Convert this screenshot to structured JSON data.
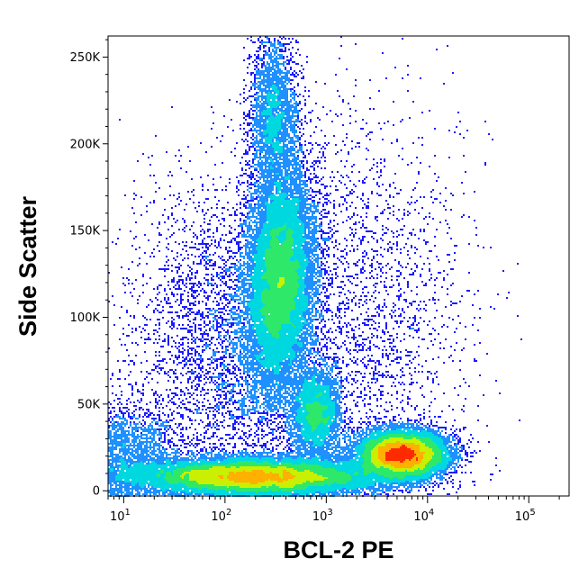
{
  "chart_data": {
    "type": "scatter",
    "style": "density-colored flow cytometry dot plot",
    "title": "",
    "xlabel": "BCL-2 PE",
    "ylabel": "Side Scatter",
    "x_scale": "log",
    "xlim": [
      7,
      250000
    ],
    "ylim": [
      -3000,
      262144
    ],
    "x_ticks": [
      {
        "value": 10,
        "base": "10",
        "exp": "1"
      },
      {
        "value": 100,
        "base": "10",
        "exp": "2"
      },
      {
        "value": 1000,
        "base": "10",
        "exp": "3"
      },
      {
        "value": 10000,
        "base": "10",
        "exp": "4"
      },
      {
        "value": 100000,
        "base": "10",
        "exp": "5"
      }
    ],
    "y_ticks": [
      {
        "value": 0,
        "label": "0"
      },
      {
        "value": 50000,
        "label": "50K"
      },
      {
        "value": 100000,
        "label": "100K"
      },
      {
        "value": 150000,
        "label": "150K"
      },
      {
        "value": 200000,
        "label": "200K"
      },
      {
        "value": 250000,
        "label": "250K"
      }
    ],
    "grid": false,
    "legend": "none",
    "colormap": [
      "#1a1aff",
      "#1e90ff",
      "#00d8e0",
      "#2ee86a",
      "#c8f000",
      "#ffb000",
      "#ff2a00"
    ],
    "populations": [
      {
        "x_center": 350,
        "x_log_sd": 0.17,
        "y_center": 120000,
        "y_sd": 32000,
        "weight": 0.25,
        "tilt": 0.25
      },
      {
        "x_center": 300,
        "x_log_sd": 0.12,
        "y_center": 215000,
        "y_sd": 25000,
        "weight": 0.05,
        "tilt": 0.0
      },
      {
        "x_center": 200,
        "x_log_sd": 0.6,
        "y_center": 8000,
        "y_sd": 5500,
        "weight": 0.3,
        "tilt": 0.0
      },
      {
        "x_center": 5500,
        "x_log_sd": 0.22,
        "y_center": 21000,
        "y_sd": 7000,
        "weight": 0.2,
        "tilt": 0.0
      },
      {
        "x_center": 800,
        "x_log_sd": 0.12,
        "y_center": 45000,
        "y_sd": 13000,
        "weight": 0.06,
        "tilt": 0.0
      },
      {
        "x_center": 90,
        "x_log_sd": 0.45,
        "y_center": 85000,
        "y_sd": 45000,
        "weight": 0.06,
        "tilt": 0.0
      },
      {
        "x_center": 2500,
        "x_log_sd": 0.5,
        "y_center": 100000,
        "y_sd": 60000,
        "weight": 0.04,
        "tilt": 0.0
      },
      {
        "x_center": 10,
        "x_log_sd": 0.25,
        "y_center": 20000,
        "y_sd": 15000,
        "weight": 0.04,
        "tilt": 0.0
      }
    ]
  }
}
